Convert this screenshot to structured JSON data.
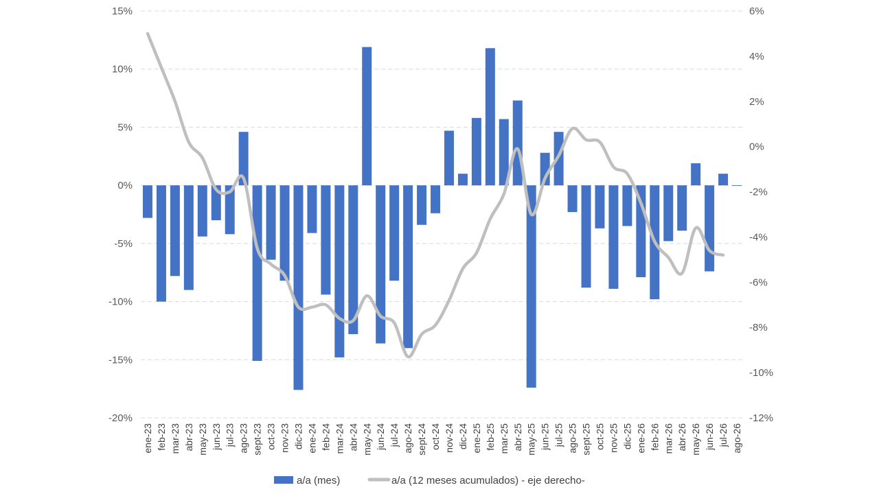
{
  "chart_data": {
    "type": "bar",
    "categories": [
      "ene-23",
      "feb-23",
      "mar-23",
      "abr-23",
      "may-23",
      "jun-23",
      "jul-23",
      "ago-23",
      "sept-23",
      "oct-23",
      "nov-23",
      "dic-23",
      "ene-24",
      "feb-24",
      "mar-24",
      "abr-24",
      "may-24",
      "jun-24",
      "jul-24",
      "ago-24",
      "sept-24",
      "oct-24",
      "nov-24",
      "dic-24",
      "ene-25",
      "feb-25",
      "mar-25",
      "abr-25",
      "may-25",
      "jun-25",
      "jul-25",
      "ago-25",
      "sept-25",
      "oct-25",
      "nov-25",
      "dic-25",
      "ene-26",
      "feb-26",
      "mar-26",
      "abr-26",
      "may-26",
      "jun-26",
      "jul-26",
      "ago-26"
    ],
    "series": [
      {
        "name": "a/a (mes)",
        "type": "bar",
        "axis": "left",
        "color": "#4472c4",
        "values": [
          -2.8,
          -10.0,
          -7.8,
          -9.0,
          -4.4,
          -3.0,
          -4.2,
          4.6,
          -15.1,
          -6.4,
          -8.2,
          -17.6,
          -4.1,
          -9.4,
          -14.8,
          -12.8,
          11.9,
          -13.6,
          -8.2,
          -14.0,
          -3.4,
          -2.4,
          4.7,
          1.0,
          5.8,
          11.8,
          5.7,
          7.3,
          -17.4,
          2.8,
          4.6,
          -2.3,
          -8.8,
          -3.7,
          -8.9,
          -3.5,
          -7.9,
          -9.8,
          -4.8,
          -3.9,
          1.9,
          -7.4,
          1.0,
          -0.05
        ]
      },
      {
        "name": "a/a (12 meses acumulados) - eje derecho-",
        "type": "line",
        "axis": "right",
        "color": "#bfbfbf",
        "values": [
          5.0,
          3.5,
          2.0,
          0.2,
          -0.5,
          -1.9,
          -2.0,
          -1.4,
          -4.5,
          -5.2,
          -5.7,
          -7.1,
          -7.1,
          -7.0,
          -7.6,
          -7.7,
          -6.6,
          -7.5,
          -7.8,
          -9.3,
          -8.3,
          -7.9,
          -6.8,
          -5.4,
          -4.7,
          -3.2,
          -2.1,
          -0.1,
          -3.0,
          -1.4,
          -0.4,
          0.8,
          0.3,
          0.2,
          -0.9,
          -1.2,
          -2.5,
          -4.2,
          -4.9,
          -5.6,
          -3.6,
          -4.6,
          -4.8,
          null
        ]
      }
    ],
    "yaxis_left": {
      "min": -20,
      "max": 15,
      "step": 5,
      "tick_labels": [
        "15%",
        "10%",
        "5%",
        "0%",
        "-5%",
        "-10%",
        "-15%",
        "-20%"
      ]
    },
    "yaxis_right": {
      "min": -12,
      "max": 6,
      "step": 2,
      "tick_labels": [
        "6%",
        "4%",
        "2%",
        "0%",
        "-2%",
        "-4%",
        "-6%",
        "-8%",
        "-10%",
        "-12%"
      ]
    },
    "grid": true,
    "legend": {
      "position": "bottom",
      "items": [
        {
          "label": "a/a (mes)",
          "symbol": "bar",
          "color": "#4472c4"
        },
        {
          "label": "a/a (12 meses acumulados) - eje derecho-",
          "symbol": "line",
          "color": "#bfbfbf"
        }
      ]
    }
  }
}
